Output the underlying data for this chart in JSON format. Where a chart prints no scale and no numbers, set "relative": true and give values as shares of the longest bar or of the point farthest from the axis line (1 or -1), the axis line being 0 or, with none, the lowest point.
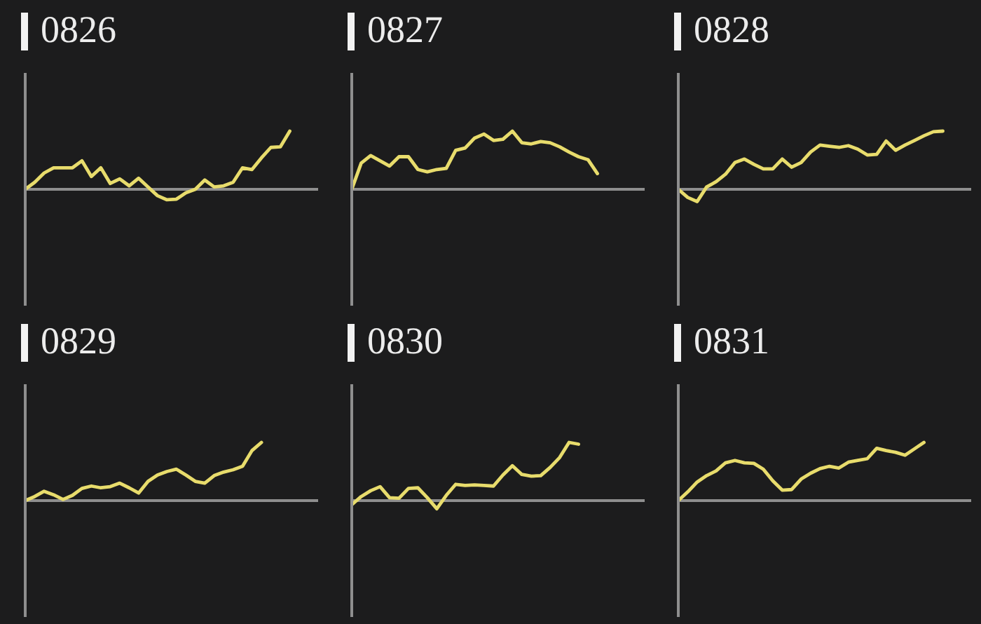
{
  "chart_data": [
    {
      "type": "line",
      "title": "0826",
      "relative": true,
      "color": "#e8dc6c",
      "categories": [
        null,
        null,
        null,
        null,
        null,
        null,
        null,
        null,
        null,
        null,
        null,
        null,
        null,
        null,
        null,
        null,
        null,
        null,
        null,
        null,
        null,
        null,
        null,
        null,
        null,
        null,
        null,
        null,
        null,
        null,
        null,
        null
      ],
      "values": [
        0,
        0.12,
        0.28,
        0.37,
        0.37,
        0.37,
        0.49,
        0.22,
        0.37,
        0.1,
        0.18,
        0.06,
        0.19,
        0.04,
        -0.11,
        -0.18,
        -0.17,
        -0.06,
        0,
        0.16,
        0.04,
        0.06,
        0.12,
        0.37,
        0.34,
        0.54,
        0.72,
        0.73,
        1,
        null,
        null,
        null
      ]
    },
    {
      "type": "line",
      "title": "0827",
      "relative": true,
      "color": "#e8dc6c",
      "categories": [
        null,
        null,
        null,
        null,
        null,
        null,
        null,
        null,
        null,
        null,
        null,
        null,
        null,
        null,
        null,
        null,
        null,
        null,
        null,
        null,
        null,
        null,
        null,
        null,
        null,
        null,
        null,
        null,
        null,
        null,
        null,
        null
      ],
      "values": [
        0,
        0.45,
        0.58,
        0.49,
        0.4,
        0.56,
        0.56,
        0.34,
        0.3,
        0.34,
        0.36,
        0.67,
        0.71,
        0.88,
        0.95,
        0.84,
        0.86,
        1,
        0.8,
        0.78,
        0.82,
        0.8,
        0.73,
        0.64,
        0.56,
        0.51,
        0.27,
        null,
        null,
        null,
        null,
        null
      ]
    },
    {
      "type": "line",
      "title": "0828",
      "relative": true,
      "color": "#e8dc6c",
      "categories": [
        null,
        null,
        null,
        null,
        null,
        null,
        null,
        null,
        null,
        null,
        null,
        null,
        null,
        null,
        null,
        null,
        null,
        null,
        null,
        null,
        null,
        null,
        null,
        null,
        null,
        null,
        null,
        null,
        null,
        null,
        null,
        null
      ],
      "values": [
        0,
        -0.14,
        -0.21,
        0.04,
        0.13,
        0.26,
        0.46,
        0.52,
        0.43,
        0.35,
        0.35,
        0.52,
        0.38,
        0.46,
        0.64,
        0.76,
        0.74,
        0.72,
        0.75,
        0.69,
        0.59,
        0.6,
        0.83,
        0.67,
        0.76,
        0.84,
        0.92,
        0.99,
        1,
        null,
        null,
        null
      ]
    },
    {
      "type": "line",
      "title": "0829",
      "relative": true,
      "color": "#e8dc6c",
      "categories": [
        null,
        null,
        null,
        null,
        null,
        null,
        null,
        null,
        null,
        null,
        null,
        null,
        null,
        null,
        null,
        null,
        null,
        null,
        null,
        null,
        null,
        null,
        null,
        null,
        null,
        null,
        null,
        null,
        null,
        null,
        null,
        null
      ],
      "values": [
        0,
        0.07,
        0.16,
        0.1,
        0.02,
        0.09,
        0.21,
        0.25,
        0.22,
        0.24,
        0.3,
        0.22,
        0.13,
        0.33,
        0.44,
        0.5,
        0.54,
        0.44,
        0.33,
        0.3,
        0.43,
        0.49,
        0.53,
        0.59,
        0.86,
        1,
        null,
        null,
        null,
        null,
        null,
        null
      ]
    },
    {
      "type": "line",
      "title": "0830",
      "relative": true,
      "color": "#e8dc6c",
      "categories": [
        null,
        null,
        null,
        null,
        null,
        null,
        null,
        null,
        null,
        null,
        null,
        null,
        null,
        null,
        null,
        null,
        null,
        null,
        null,
        null,
        null,
        null,
        null,
        null,
        null,
        null,
        null,
        null,
        null,
        null,
        null,
        null
      ],
      "values": [
        -0.07,
        0.07,
        0.17,
        0.24,
        0.05,
        0.04,
        0.21,
        0.22,
        0.05,
        -0.14,
        0.09,
        0.28,
        0.26,
        0.27,
        0.26,
        0.25,
        0.44,
        0.6,
        0.45,
        0.42,
        0.43,
        0.57,
        0.74,
        1,
        0.97,
        null,
        null,
        null,
        null,
        null,
        null,
        null
      ]
    },
    {
      "type": "line",
      "title": "0831",
      "relative": true,
      "color": "#e8dc6c",
      "categories": [
        null,
        null,
        null,
        null,
        null,
        null,
        null,
        null,
        null,
        null,
        null,
        null,
        null,
        null,
        null,
        null,
        null,
        null,
        null,
        null,
        null,
        null,
        null,
        null,
        null,
        null,
        null,
        null,
        null,
        null,
        null,
        null
      ],
      "values": [
        0,
        0.15,
        0.32,
        0.43,
        0.51,
        0.65,
        0.69,
        0.65,
        0.64,
        0.54,
        0.34,
        0.18,
        0.19,
        0.37,
        0.47,
        0.55,
        0.59,
        0.56,
        0.66,
        0.69,
        0.72,
        0.9,
        0.86,
        0.83,
        0.78,
        0.89,
        1,
        null,
        null,
        null,
        null,
        null
      ]
    }
  ]
}
